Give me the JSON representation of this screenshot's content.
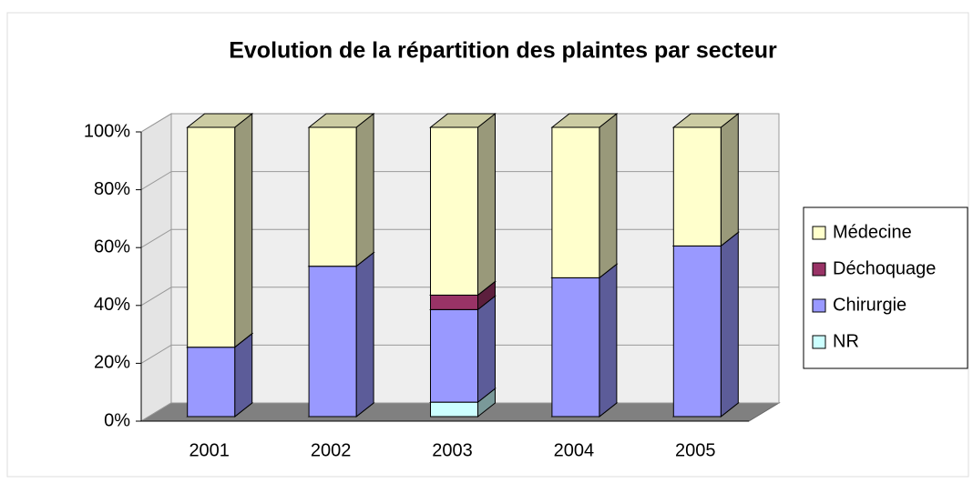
{
  "chart_data": {
    "type": "bar",
    "stacked": true,
    "title": "Evolution de la répartition des plaintes par secteur",
    "categories": [
      "2001",
      "2002",
      "2003",
      "2004",
      "2005"
    ],
    "series": [
      {
        "name": "NR",
        "color": "#ccffff",
        "values": [
          0,
          0,
          5,
          0,
          0
        ]
      },
      {
        "name": "Chirurgie",
        "color": "#9999ff",
        "values": [
          24,
          52,
          32,
          48,
          59
        ]
      },
      {
        "name": "Déchoquage",
        "color": "#993366",
        "values": [
          0,
          0,
          5,
          0,
          0
        ]
      },
      {
        "name": "Médecine",
        "color": "#ffffcc",
        "values": [
          76,
          48,
          58,
          52,
          41
        ]
      }
    ],
    "ylim": [
      0,
      100
    ],
    "yticks": [
      {
        "value": 0,
        "label": "0%"
      },
      {
        "value": 20,
        "label": "20%"
      },
      {
        "value": 40,
        "label": "40%"
      },
      {
        "value": 60,
        "label": "60%"
      },
      {
        "value": 80,
        "label": "80%"
      },
      {
        "value": 100,
        "label": "100%"
      }
    ],
    "grid": true,
    "legend": "right"
  }
}
